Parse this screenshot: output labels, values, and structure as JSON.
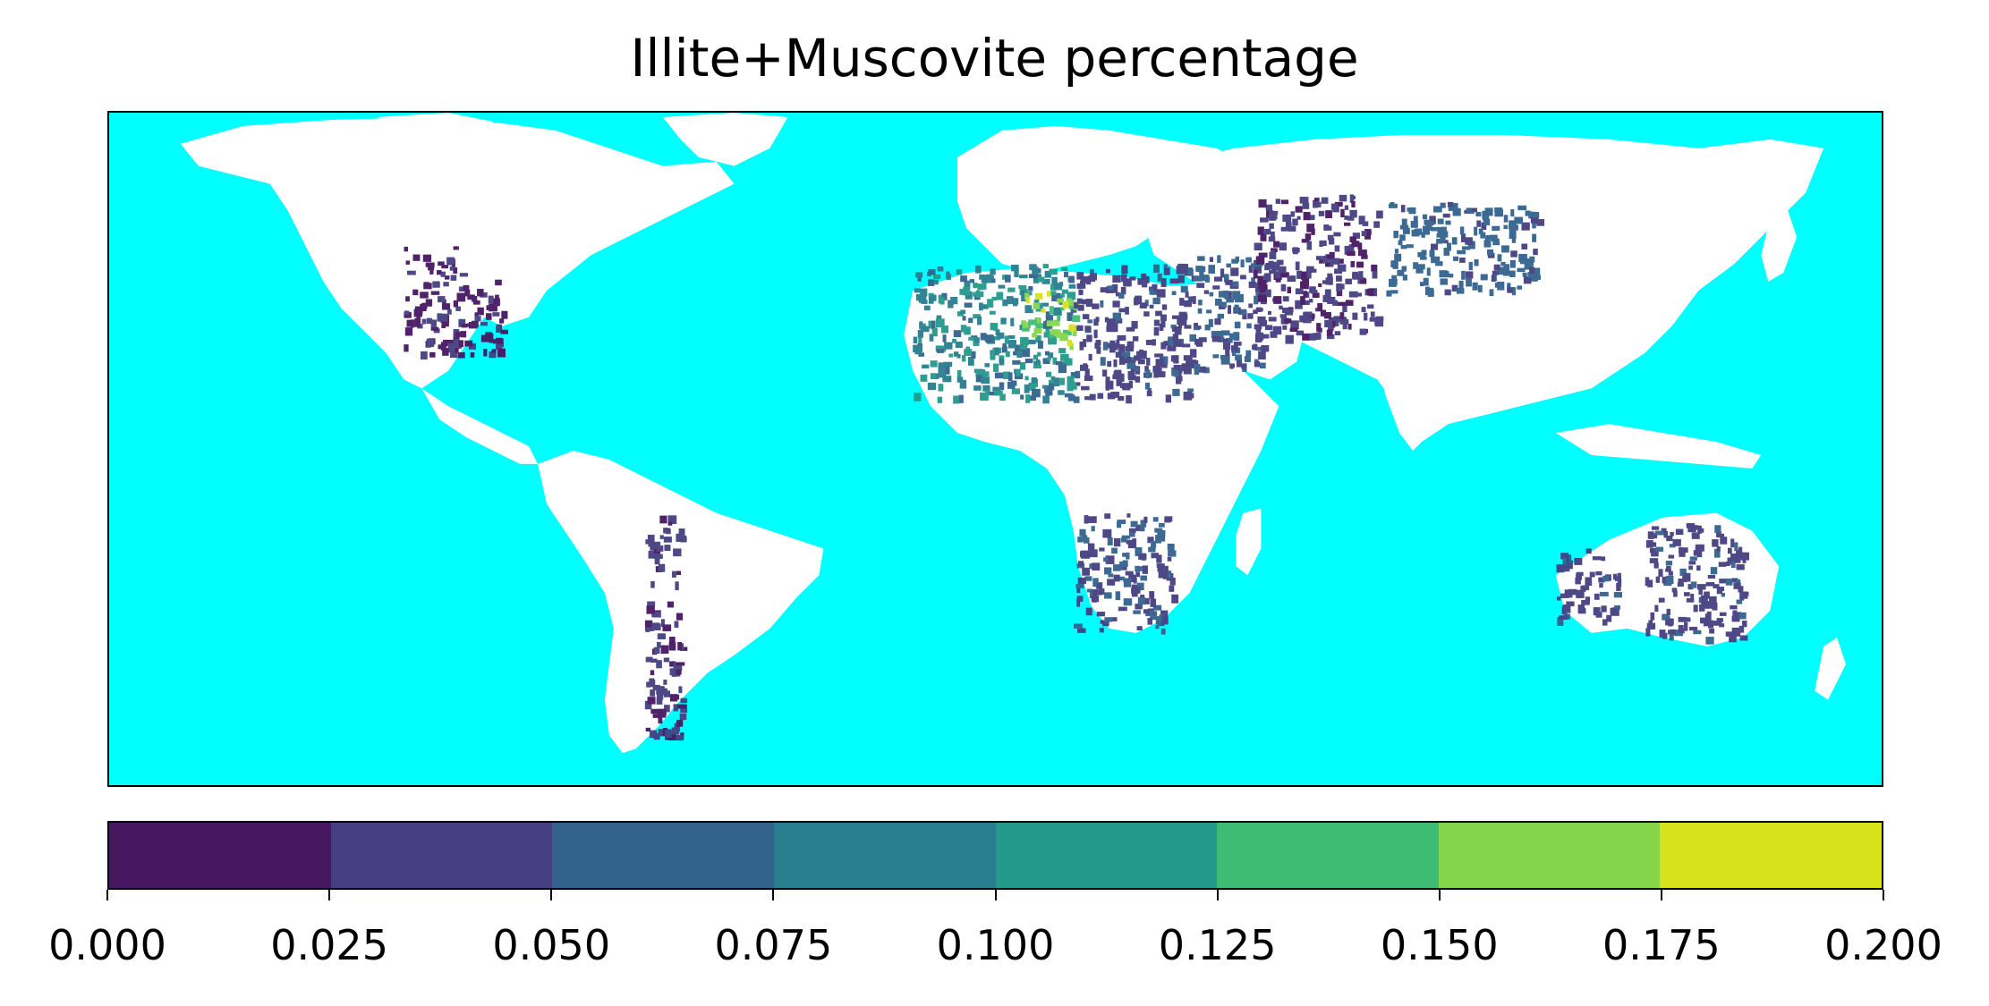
{
  "title": "Illite+Muscovite percentage",
  "map": {
    "ocean_color": "#00ffff",
    "land_color": "#ffffff",
    "projection": "plate carree (equirectangular)",
    "extent": {
      "lon": [
        -180,
        180
      ],
      "lat": [
        -60,
        90
      ]
    }
  },
  "colorbar": {
    "orientation": "horizontal",
    "boundaries": [
      0.0,
      0.025,
      0.05,
      0.075,
      0.1,
      0.125,
      0.15,
      0.175,
      0.2
    ],
    "tick_labels": [
      "0.000",
      "0.025",
      "0.050",
      "0.075",
      "0.100",
      "0.125",
      "0.150",
      "0.175",
      "0.200"
    ],
    "colors": [
      "#471761",
      "#453f81",
      "#33638d",
      "#287d8e",
      "#23998b",
      "#3fbc73",
      "#85d54a",
      "#d7e21a"
    ]
  },
  "chart_data": {
    "type": "heatmap",
    "title": "Illite+Muscovite percentage",
    "xlabel": "",
    "ylabel": "",
    "value_range": [
      0.0,
      0.2
    ],
    "regions": [
      {
        "region": "Western United States / Mexico",
        "value": 0.02
      },
      {
        "region": "Sahara (west-central)",
        "value": 0.09
      },
      {
        "region": "Sahara (central peak)",
        "value": 0.16
      },
      {
        "region": "Sahara (east)",
        "value": 0.04
      },
      {
        "region": "Arabian Peninsula",
        "value": 0.05
      },
      {
        "region": "Iran / Central Asia",
        "value": 0.03
      },
      {
        "region": "Tarim / Mongolia",
        "value": 0.06
      },
      {
        "region": "Southern Africa (Namib/Kalahari)",
        "value": 0.05
      },
      {
        "region": "Andes / Patagonia",
        "value": 0.03
      },
      {
        "region": "Australia",
        "value": 0.04
      }
    ]
  }
}
